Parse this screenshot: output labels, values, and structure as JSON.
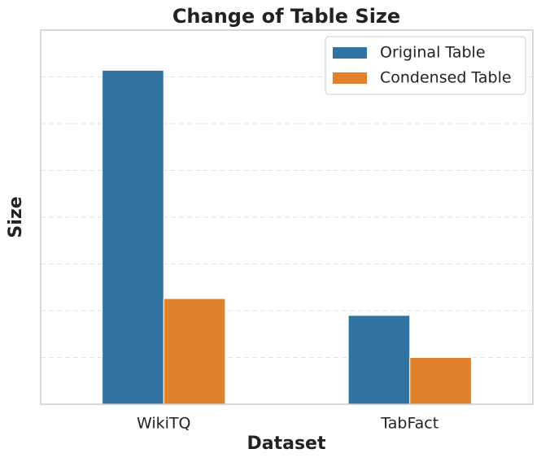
{
  "chart_data": {
    "type": "bar",
    "title": "Change of Table Size",
    "x_label": "Dataset",
    "y_label": "Size",
    "categories": [
      "WikiTQ",
      "TabFact"
    ],
    "series": [
      {
        "name": "Original Table",
        "color": "#3274a1",
        "values": [
          7.14,
          1.9
        ]
      },
      {
        "name": "Condensed Table",
        "color": "#e1812c",
        "values": [
          2.26,
          1.0
        ]
      }
    ],
    "ylim": [
      0,
      8
    ],
    "yticks": [
      1,
      2,
      3,
      4,
      5,
      6,
      7
    ],
    "y_tick_labels": false,
    "grid": true,
    "legend": "upper right"
  }
}
